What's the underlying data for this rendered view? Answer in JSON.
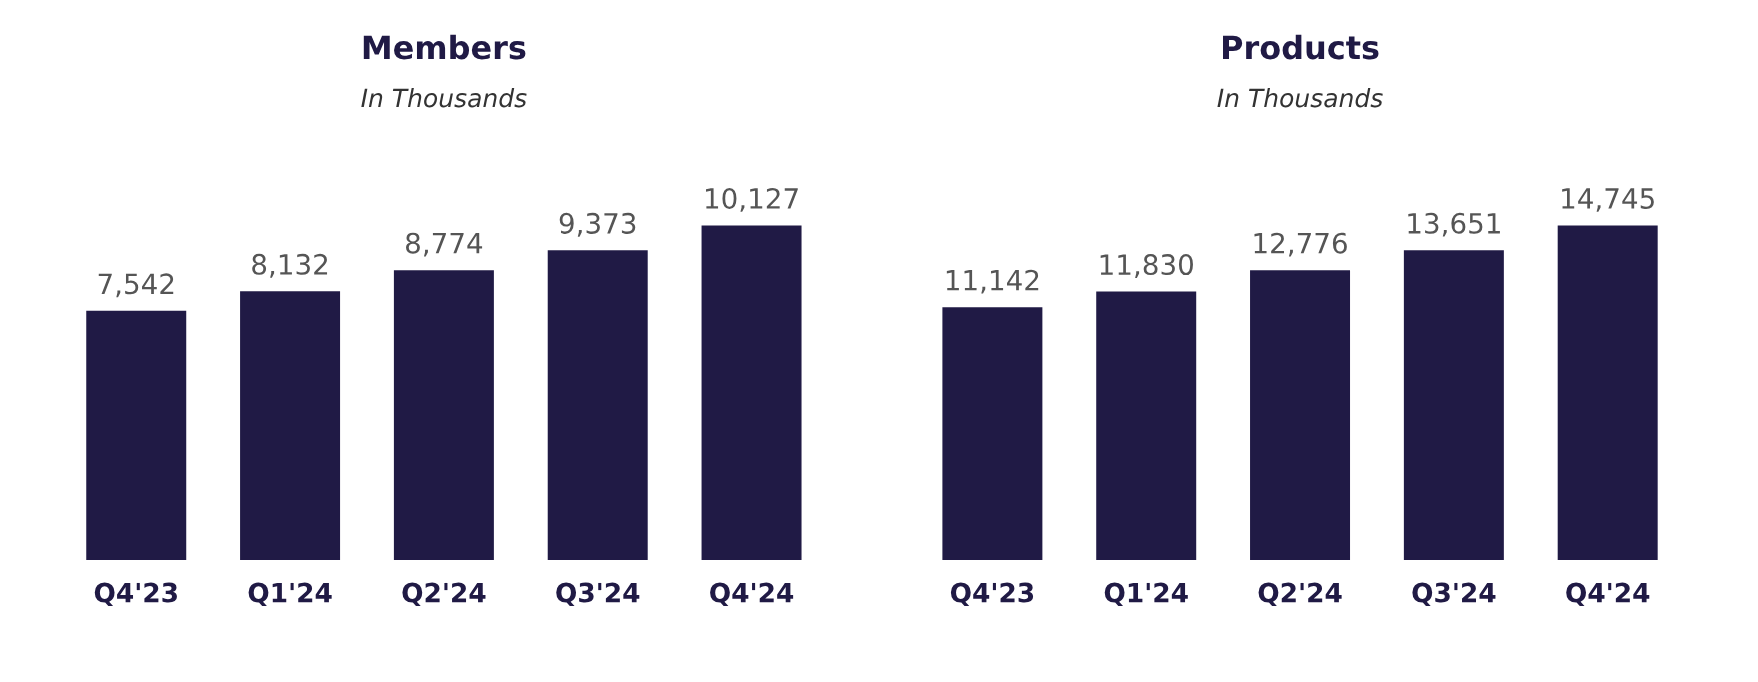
{
  "chart_data": [
    {
      "type": "bar",
      "title": "Members",
      "subtitle": "In Thousands",
      "categories": [
        "Q4'23",
        "Q1'24",
        "Q2'24",
        "Q3'24",
        "Q4'24"
      ],
      "values": [
        7542,
        8132,
        8774,
        9373,
        10127
      ],
      "value_labels": [
        "7,542",
        "8,132",
        "8,774",
        "9,373",
        "10,127"
      ],
      "color": "#201a45",
      "tick_labels": "x",
      "grid": false,
      "legend": false
    },
    {
      "type": "bar",
      "title": "Products",
      "subtitle": "In Thousands",
      "categories": [
        "Q4'23",
        "Q1'24",
        "Q2'24",
        "Q3'24",
        "Q4'24"
      ],
      "values": [
        11142,
        11830,
        12776,
        13651,
        14745
      ],
      "value_labels": [
        "11,142",
        "11,830",
        "12,776",
        "13,651",
        "14,745"
      ],
      "color": "#201a45",
      "tick_labels": "x",
      "grid": false,
      "legend": false
    }
  ]
}
